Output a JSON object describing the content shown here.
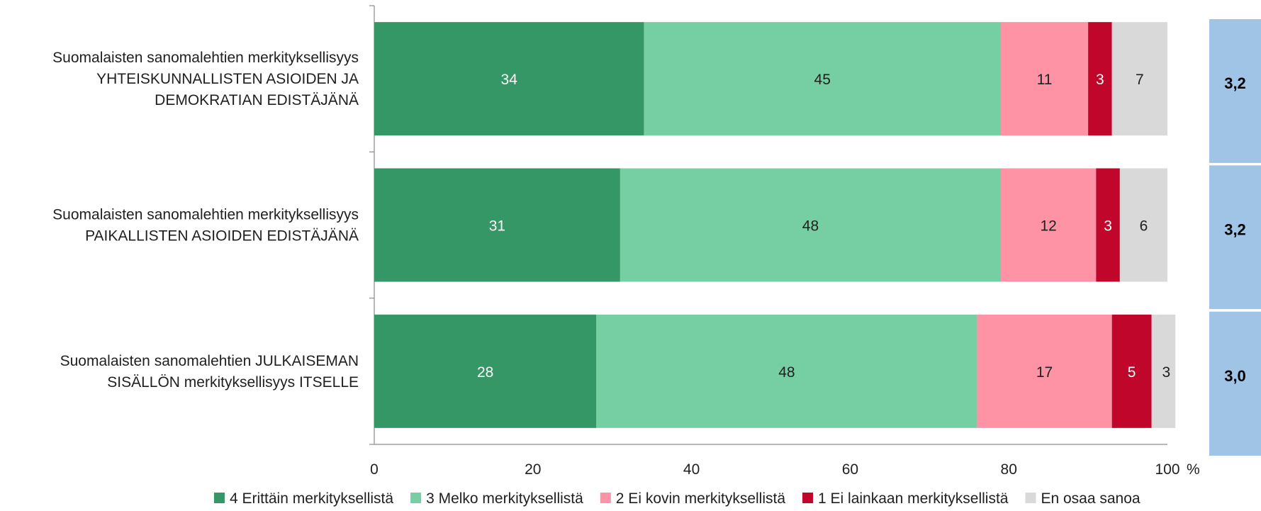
{
  "chart_data": {
    "type": "bar",
    "orientation": "horizontal",
    "stacked": true,
    "categories": [
      [
        "Suomalaisten sanomalehtien merkityksellisyys",
        "YHTEISKUNNALLISTEN ASIOIDEN JA",
        "DEMOKRATIAN EDISTÄJÄNÄ"
      ],
      [
        "Suomalaisten sanomalehtien merkityksellisyys",
        "PAIKALLISTEN ASIOIDEN EDISTÄJÄNÄ"
      ],
      [
        "Suomalaisten sanomalehtien JULKAISEMAN",
        "SISÄLLÖN merkityksellisyys ITSELLE"
      ]
    ],
    "series": [
      {
        "name": "4 Erittäin merkityksellistä",
        "color": "#359766",
        "label_color": "#ffffff",
        "values": [
          34,
          31,
          28
        ]
      },
      {
        "name": "3 Melko merkityksellistä",
        "color": "#76cfa3",
        "label_color": "#1f1f1f",
        "values": [
          45,
          48,
          48
        ]
      },
      {
        "name": "2 Ei kovin merkityksellistä",
        "color": "#fd93a5",
        "label_color": "#1f1f1f",
        "values": [
          11,
          12,
          17
        ]
      },
      {
        "name": "1 Ei lainkaan merkityksellistä",
        "color": "#c0062b",
        "label_color": "#ffffff",
        "values": [
          3,
          3,
          5
        ]
      },
      {
        "name": "En osaa sanoa",
        "color": "#d9d9d9",
        "label_color": "#1f1f1f",
        "values": [
          7,
          6,
          3
        ]
      }
    ],
    "averages": [
      "3,2",
      "3,2",
      "3,0"
    ],
    "average_color": "#a0c4e6",
    "x_ticks": [
      "0",
      "20",
      "40",
      "60",
      "80",
      "100"
    ],
    "xlim": [
      0,
      100
    ],
    "x_unit": "%",
    "legend_position": "bottom",
    "grid": false
  }
}
